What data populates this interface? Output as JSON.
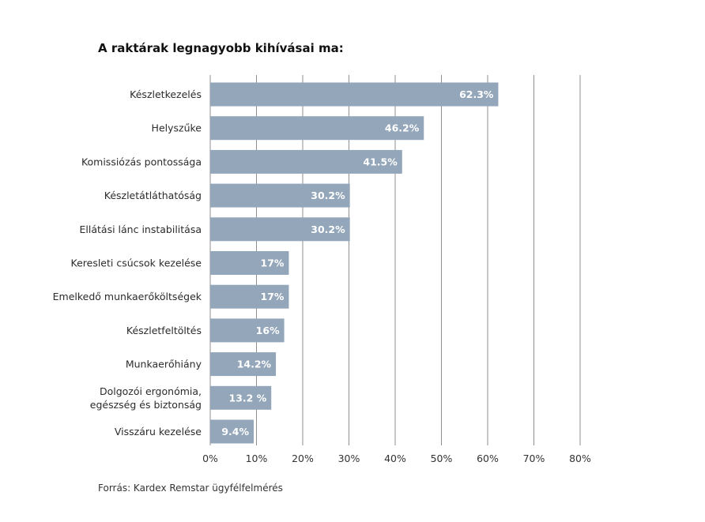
{
  "chart_data": {
    "type": "bar",
    "orientation": "horizontal",
    "title": "A raktárak legnagyobb kihívásai ma:",
    "categories": [
      "Készletkezelés",
      "Helyszűke",
      "Komissiózás pontossága",
      "Készletátláthatóság",
      "Ellátási lánc instabilitása",
      "Keresleti csúcsok kezelése",
      "Emelkedő munkaerőköltségek",
      "Készletfeltöltés",
      "Munkaerőhiány",
      "Dolgozói ergonómia,\negészség és biztonság",
      "Visszáru kezelése"
    ],
    "values": [
      62.3,
      46.2,
      41.5,
      30.2,
      30.2,
      17,
      17,
      16,
      14.2,
      13.2,
      9.4
    ],
    "value_labels": [
      "62.3%",
      "46.2%",
      "41.5%",
      "30.2%",
      "30.2%",
      "17%",
      "17%",
      "16%",
      "14.2%",
      "13.2 %",
      "9.4%"
    ],
    "xlim": [
      0,
      80
    ],
    "x_ticks": [
      0,
      10,
      20,
      30,
      40,
      50,
      60,
      70,
      80
    ],
    "x_tick_labels": [
      "0%",
      "10%",
      "20%",
      "30%",
      "40%",
      "50%",
      "60%",
      "70%",
      "80%"
    ],
    "grid": "vertical",
    "bar_color": "#93a6ba",
    "grid_color": "#8f8f8f"
  },
  "source": "Forrás: Kardex Remstar ügyfélfelmérés"
}
